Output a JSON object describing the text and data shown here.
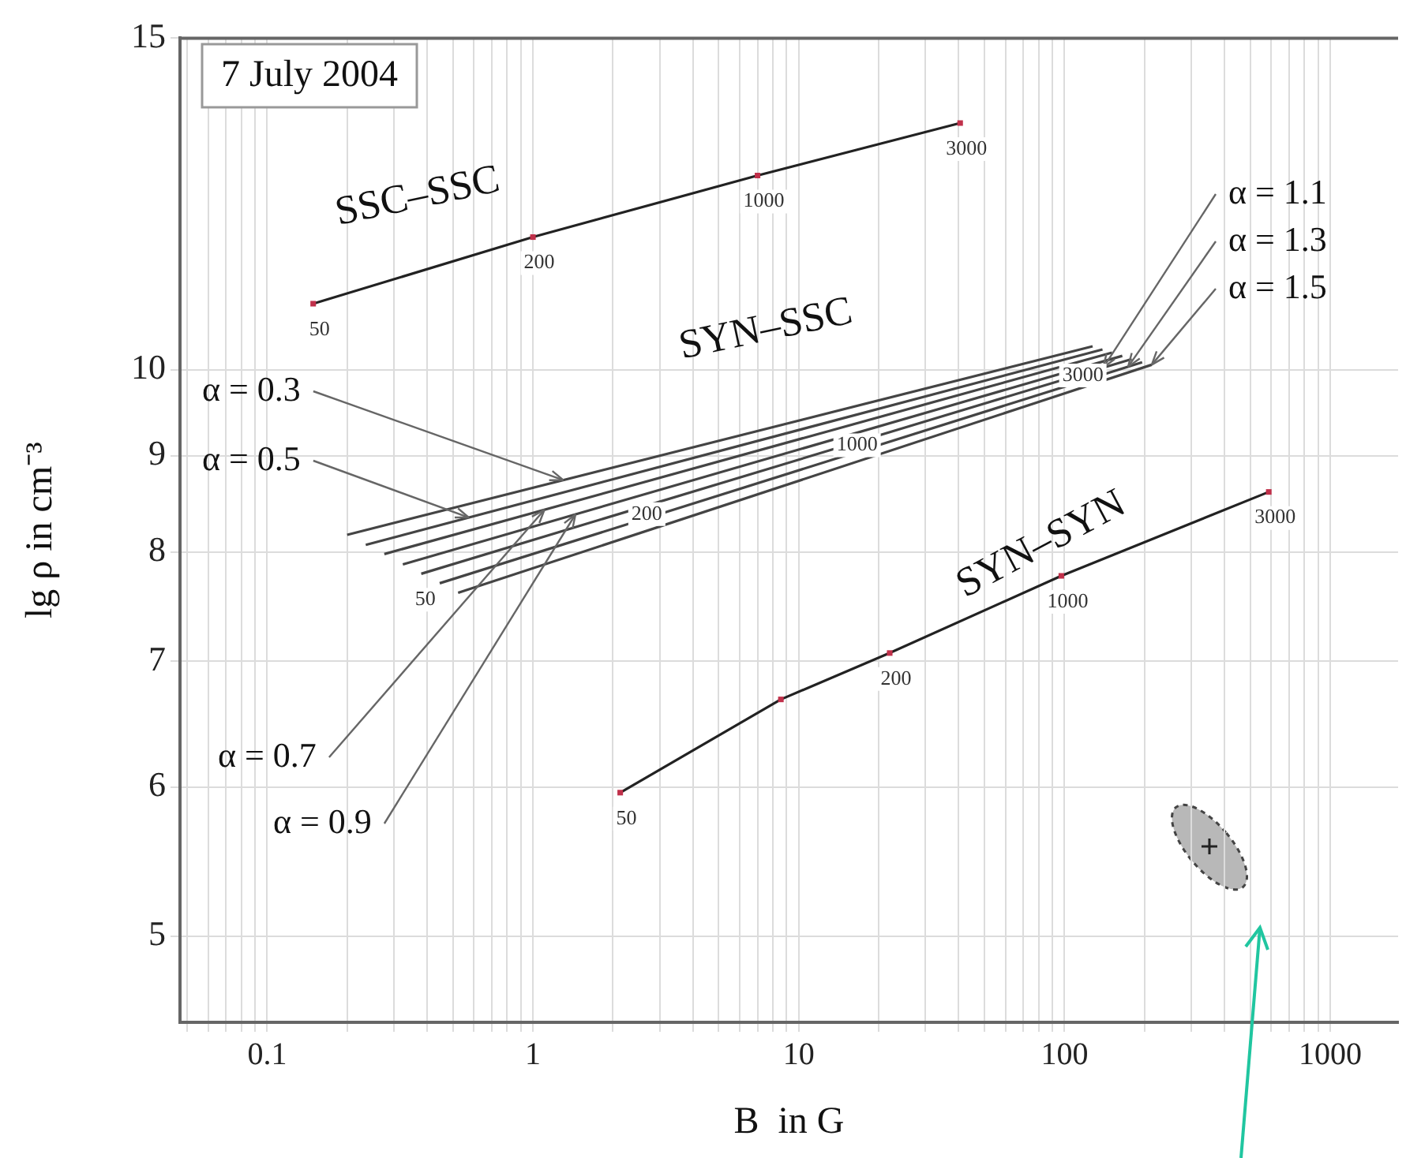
{
  "chart_data": {
    "type": "line",
    "xlabel": "B  in G",
    "ylabel": "lg ρ in cm⁻³",
    "log": "xy",
    "grid": true,
    "legend": false,
    "xlim": [
      0.047,
      1800
    ],
    "ylim": [
      4.5,
      15
    ],
    "xticks": [
      {
        "value": 0.05,
        "label": null
      },
      {
        "value": 0.06,
        "label": null
      },
      {
        "value": 0.07,
        "label": null
      },
      {
        "value": 0.08,
        "label": null
      },
      {
        "value": 0.09,
        "label": null
      },
      0.1,
      {
        "value": 0.2,
        "label": null
      },
      {
        "value": 0.3,
        "label": null
      },
      {
        "value": 0.4,
        "label": null
      },
      {
        "value": 0.5,
        "label": null
      },
      {
        "value": 0.6,
        "label": null
      },
      {
        "value": 0.7,
        "label": null
      },
      {
        "value": 0.8,
        "label": null
      },
      {
        "value": 0.9,
        "label": null
      },
      1,
      {
        "value": 2,
        "label": null
      },
      {
        "value": 3,
        "label": null
      },
      {
        "value": 4,
        "label": null
      },
      {
        "value": 5,
        "label": null
      },
      {
        "value": 6,
        "label": null
      },
      {
        "value": 7,
        "label": null
      },
      {
        "value": 8,
        "label": null
      },
      {
        "value": 9,
        "label": null
      },
      10,
      {
        "value": 20,
        "label": null
      },
      {
        "value": 30,
        "label": null
      },
      {
        "value": 40,
        "label": null
      },
      {
        "value": 50,
        "label": null
      },
      {
        "value": 60,
        "label": null
      },
      {
        "value": 70,
        "label": null
      },
      {
        "value": 80,
        "label": null
      },
      {
        "value": 90,
        "label": null
      },
      100,
      {
        "value": 200,
        "label": null
      },
      {
        "value": 300,
        "label": null
      },
      {
        "value": 400,
        "label": null
      },
      {
        "value": 500,
        "label": null
      },
      {
        "value": 600,
        "label": null
      },
      {
        "value": 700,
        "label": null
      },
      {
        "value": 800,
        "label": null
      },
      {
        "value": 900,
        "label": null
      },
      1000
    ],
    "yticks": [
      5,
      6,
      7,
      8,
      9,
      10,
      15
    ],
    "series": [
      {
        "name": "SSC–SSC",
        "marker": "square",
        "x": [
          0.149,
          1,
          7.0,
          40.5
        ],
        "values": [
          10.84,
          11.76,
          12.68,
          13.52
        ],
        "color": "#222222"
      },
      {
        "name": "SYN–SYN",
        "marker": "square",
        "x": [
          2.13,
          8.57,
          22.0,
          97.3,
          587
        ],
        "values": [
          5.96,
          6.68,
          7.07,
          7.77,
          8.61
        ],
        "color": "#222222"
      },
      {
        "name": "α = 0.3",
        "x": [
          0.2,
          127.6
        ],
        "values": [
          8.17,
          10.29
        ],
        "color": "#444444"
      },
      {
        "name": "α = 0.5",
        "x": [
          0.235,
          139
        ],
        "values": [
          8.07,
          10.25
        ],
        "color": "#444444"
      },
      {
        "name": "α = 0.7",
        "x": [
          0.276,
          151
        ],
        "values": [
          7.98,
          10.21
        ],
        "color": "#444444"
      },
      {
        "name": "α = 0.9",
        "x": [
          0.324,
          165
        ],
        "values": [
          7.88,
          10.17
        ],
        "color": "#444444"
      },
      {
        "name": "α = 1.1",
        "x": [
          0.38,
          179
        ],
        "values": [
          7.79,
          10.13
        ],
        "color": "#444444"
      },
      {
        "name": "α = 1.3",
        "x": [
          0.446,
          196
        ],
        "values": [
          7.7,
          10.09
        ],
        "color": "#444444"
      },
      {
        "name": "α = 1.5",
        "x": [
          0.523,
          213
        ],
        "values": [
          7.61,
          10.06
        ],
        "color": "#444444"
      },
      {
        "type": "scatter",
        "marker": "cross",
        "x": [
          351
        ],
        "values": [
          5.58
        ],
        "color": "#222222"
      }
    ],
    "annotations": [
      "7 July 2004",
      "SYN–SSC",
      {
        "text": "50",
        "x": 0.149,
        "y": 10.84
      },
      {
        "text": "200",
        "x": 1,
        "y": 11.76
      },
      {
        "text": "1000",
        "x": 7.0,
        "y": 12.68
      },
      {
        "text": "3000",
        "x": 40.5,
        "y": 13.52
      },
      {
        "text": "50",
        "x": 0.373,
        "y": 7.79
      },
      {
        "text": "200",
        "x": 2.54,
        "y": 8.65
      },
      {
        "text": "1000",
        "x": 15.7,
        "y": 9.41
      },
      {
        "text": "3000",
        "x": 111,
        "y": 10.25
      },
      {
        "text": "50",
        "x": 2.13,
        "y": 5.96
      },
      {
        "text": "200",
        "x": 22.0,
        "y": 7.07
      },
      {
        "text": "1000",
        "x": 97.3,
        "y": 7.77
      },
      {
        "text": "3000",
        "x": 587,
        "y": 8.61
      }
    ]
  }
}
